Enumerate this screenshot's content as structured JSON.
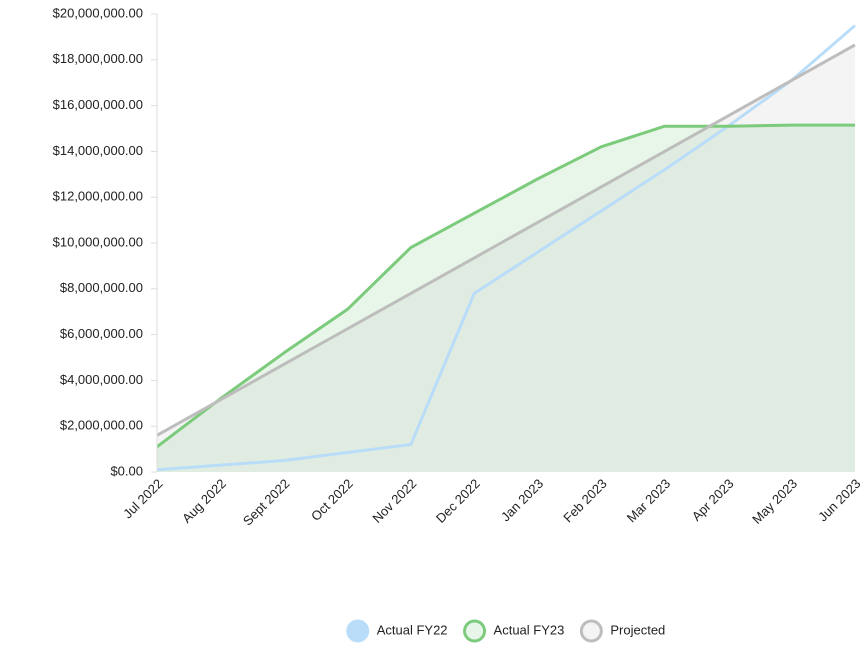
{
  "chart_data": {
    "type": "line",
    "categories": [
      "Jul 2022",
      "Aug 2022",
      "Sept 2022",
      "Oct 2022",
      "Nov 2022",
      "Dec 2022",
      "Jan 2023",
      "Feb 2023",
      "Mar 2023",
      "Apr 2023",
      "May 2023",
      "Jun 2023"
    ],
    "series": [
      {
        "name": "Actual FY22",
        "color": "#b9ddf8",
        "fill": false,
        "values": [
          100000,
          300000,
          500000,
          850000,
          1200000,
          7800000,
          9600000,
          11400000,
          13200000,
          15100000,
          17100000,
          19500000
        ]
      },
      {
        "name": "Actual FY23",
        "color": "#7ccb7d",
        "fill": true,
        "fill_color": "rgba(124,203,125,0.18)",
        "values": [
          1100000,
          3200000,
          5200000,
          7100000,
          9800000,
          11300000,
          12800000,
          14200000,
          15100000,
          15100000,
          15150000,
          15150000
        ]
      },
      {
        "name": "Projected",
        "color": "#bdbdbd",
        "fill": true,
        "fill_color": "rgba(200,200,200,0.2)",
        "values": [
          1600000,
          3150000,
          4700000,
          6250000,
          7800000,
          9350000,
          10900000,
          12450000,
          14000000,
          15550000,
          17100000,
          18650000
        ]
      }
    ],
    "ylim": [
      0,
      20000000
    ],
    "yticks": [
      {
        "value": 0,
        "label": "$0.00"
      },
      {
        "value": 2000000,
        "label": "$2,000,000.00"
      },
      {
        "value": 4000000,
        "label": "$4,000,000.00"
      },
      {
        "value": 6000000,
        "label": "$6,000,000.00"
      },
      {
        "value": 8000000,
        "label": "$8,000,000.00"
      },
      {
        "value": 10000000,
        "label": "$10,000,000.00"
      },
      {
        "value": 12000000,
        "label": "$12,000,000.00"
      },
      {
        "value": 14000000,
        "label": "$14,000,000.00"
      },
      {
        "value": 16000000,
        "label": "$16,000,000.00"
      },
      {
        "value": 18000000,
        "label": "$18,000,000.00"
      },
      {
        "value": 20000000,
        "label": "$20,000,000.00"
      }
    ],
    "grid": false,
    "legend": "bottom"
  }
}
